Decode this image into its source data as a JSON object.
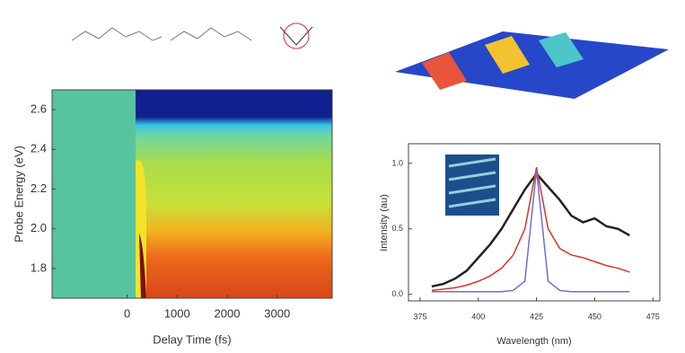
{
  "chart_data": [
    {
      "type": "heatmap",
      "xlabel": "Delay Time (fs)",
      "ylabel": "Probe Energy (eV)",
      "xlim": [
        -1500,
        4100
      ],
      "ylim": [
        1.65,
        2.7
      ],
      "xticks": [
        0,
        1000,
        2000,
        3000
      ],
      "yticks": [
        {
          "value": 1.8,
          "label": "1.8"
        },
        {
          "value": 2.0,
          "label": "2.0"
        },
        {
          "value": 2.2,
          "label": "2.2"
        },
        {
          "value": 2.4,
          "label": "2.4"
        },
        {
          "value": 2.6,
          "label": "2.6"
        }
      ]
    },
    {
      "type": "line",
      "xlabel": "Wavelength (nm)",
      "ylabel": "Intensity (au)",
      "xlim": [
        370,
        478
      ],
      "ylim": [
        -0.05,
        1.15
      ],
      "xticks": [
        375,
        400,
        425,
        450,
        475
      ],
      "yticks": [
        {
          "value": 0,
          "label": "0.0"
        },
        0.5,
        {
          "value": 1,
          "label": "1.0"
        }
      ],
      "x": [
        380,
        385,
        390,
        395,
        400,
        405,
        410,
        415,
        420,
        425,
        430,
        435,
        440,
        445,
        450,
        455,
        460,
        465
      ],
      "series": [
        {
          "color": "#222222",
          "values": [
            0.06,
            0.08,
            0.12,
            0.18,
            0.28,
            0.38,
            0.5,
            0.65,
            0.8,
            0.92,
            0.82,
            0.72,
            0.6,
            0.55,
            0.58,
            0.52,
            0.5,
            0.45
          ]
        },
        {
          "color": "#d9362b",
          "values": [
            0.03,
            0.04,
            0.05,
            0.07,
            0.1,
            0.14,
            0.2,
            0.3,
            0.5,
            0.97,
            0.5,
            0.35,
            0.3,
            0.28,
            0.25,
            0.22,
            0.2,
            0.17
          ]
        },
        {
          "color": "#6b6fd6",
          "values": [
            0.02,
            0.02,
            0.02,
            0.02,
            0.02,
            0.02,
            0.02,
            0.03,
            0.1,
            0.95,
            0.1,
            0.03,
            0.02,
            0.02,
            0.02,
            0.02,
            0.02,
            0.02
          ]
        }
      ]
    }
  ]
}
